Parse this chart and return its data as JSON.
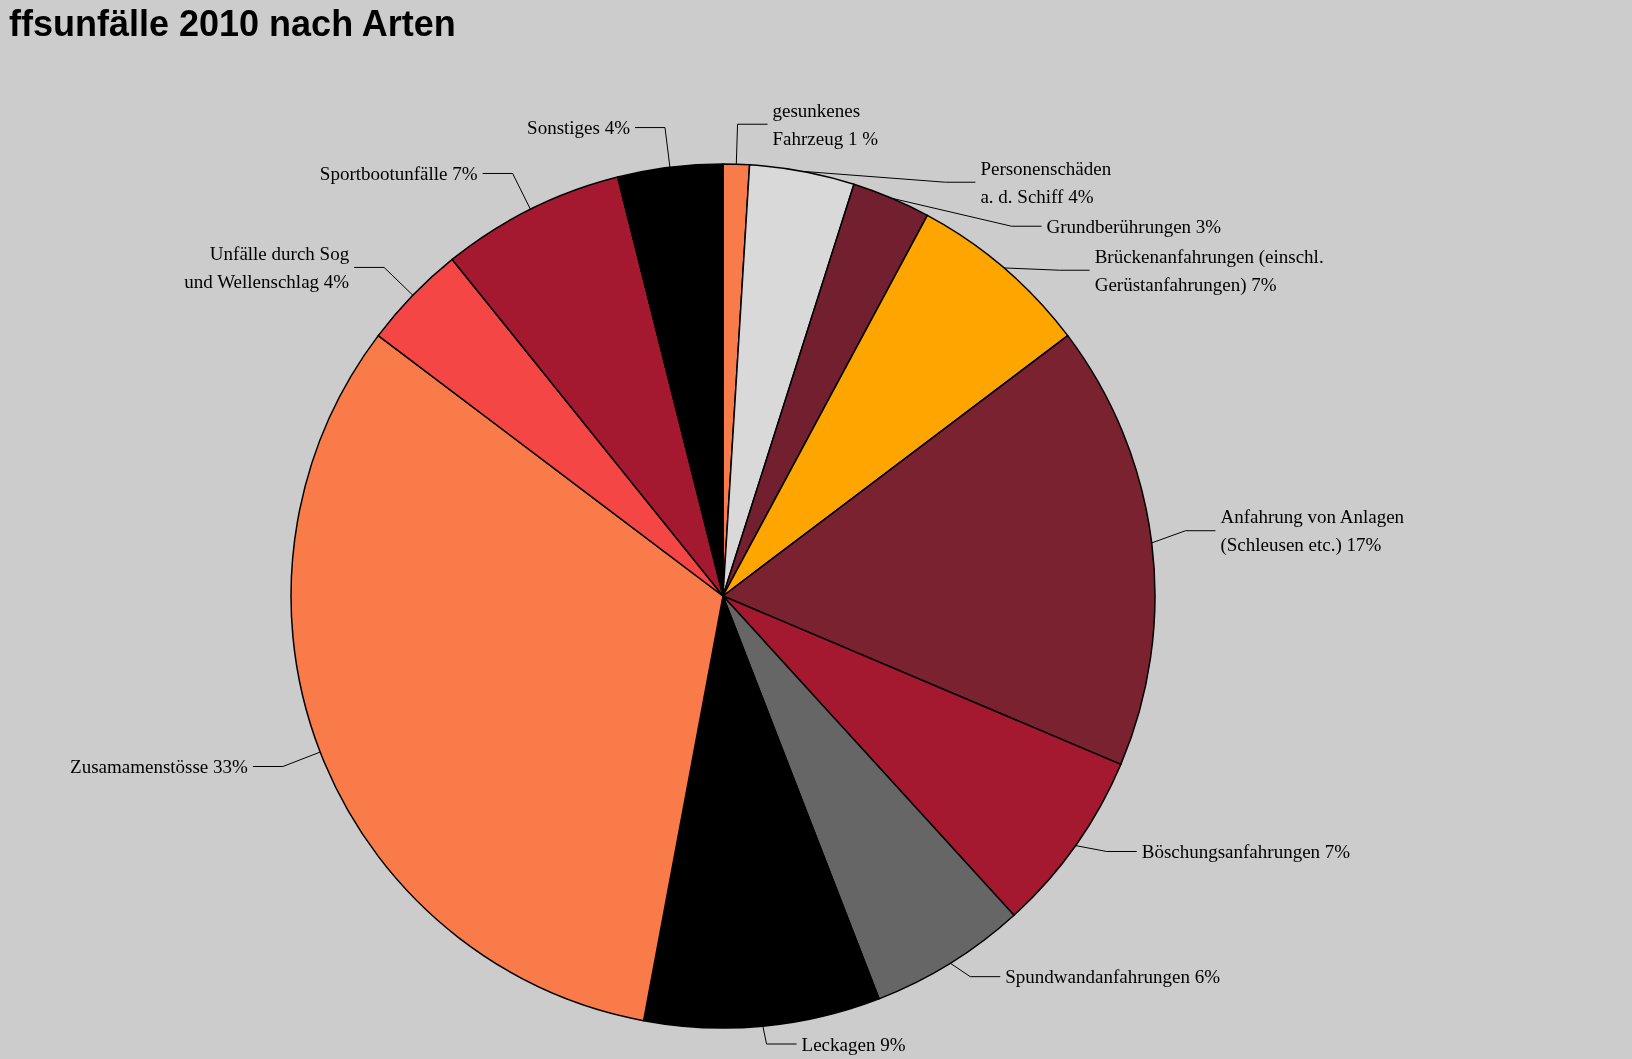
{
  "chart_data": {
    "type": "pie",
    "title": "ffsunfälle 2010 nach Arten",
    "categories": [
      "gesunkenes\nFahrzeug 1 %",
      "Personenschäden\na. d. Schiff 4%",
      "Grundberührungen 3%",
      "Brückenanfahrungen (einschl.\nGerüstanfahrungen) 7%",
      "Anfahrung von Anlagen\n(Schleusen etc.) 17%",
      "Böschungsanfahrungen 7%",
      "Spundwandanfahrungen 6%",
      "Leckagen 9%",
      "Zusamamenstösse 33%",
      "Unfälle durch Sog\nund Wellenschlag 4%",
      "Sportbootunfälle 7%",
      "Sonstiges 4%"
    ],
    "values": [
      1,
      4,
      3,
      7,
      17,
      7,
      6,
      9,
      33,
      4,
      7,
      4
    ],
    "colors": [
      "#f97b4a",
      "#d9d9d9",
      "#722030",
      "#ffa500",
      "#7a2230",
      "#a51930",
      "#666666",
      "#000000",
      "#f97b4a",
      "#f44745",
      "#a51930",
      "#000000"
    ],
    "legend": false
  }
}
